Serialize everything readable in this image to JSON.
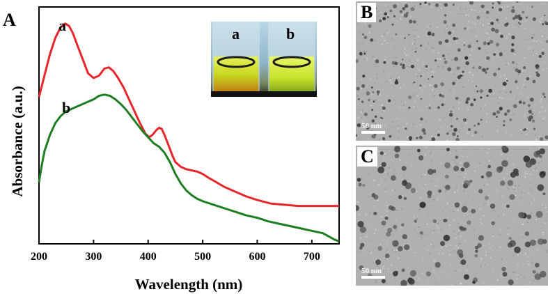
{
  "figure": {
    "panel_a_letter": "A",
    "panel_b_letter": "B",
    "panel_c_letter": "C",
    "scale_bar_b": "50 nm",
    "scale_bar_c": "50 nm",
    "inset_labels": [
      "a",
      "b"
    ],
    "colors": {
      "series_a": "#e8262a",
      "series_b": "#1c7d21",
      "axis": "#000000"
    }
  },
  "chart_data": {
    "type": "line",
    "title": "",
    "xlabel": "Wavelength (nm)",
    "ylabel": "Absorbance (a.u.)",
    "xlim": [
      200,
      750
    ],
    "ylim": [
      0,
      1
    ],
    "xticks": [
      200,
      300,
      400,
      500,
      600,
      700
    ],
    "y_tick_labels_shown": false,
    "series": [
      {
        "name": "a",
        "label": "a",
        "color": "#e8262a",
        "x": [
          200,
          210,
          220,
          230,
          240,
          248,
          255,
          262,
          270,
          280,
          290,
          300,
          310,
          320,
          328,
          336,
          345,
          355,
          365,
          375,
          385,
          395,
          402,
          408,
          415,
          420,
          425,
          430,
          435,
          440,
          445,
          450,
          460,
          470,
          480,
          490,
          500,
          510,
          525,
          540,
          560,
          580,
          600,
          625,
          650,
          675,
          700,
          725,
          750
        ],
        "y": [
          0.62,
          0.71,
          0.8,
          0.87,
          0.915,
          0.93,
          0.92,
          0.89,
          0.84,
          0.78,
          0.72,
          0.7,
          0.71,
          0.74,
          0.745,
          0.73,
          0.7,
          0.66,
          0.61,
          0.56,
          0.51,
          0.465,
          0.45,
          0.46,
          0.48,
          0.49,
          0.485,
          0.46,
          0.43,
          0.4,
          0.37,
          0.345,
          0.325,
          0.315,
          0.31,
          0.305,
          0.295,
          0.28,
          0.26,
          0.24,
          0.22,
          0.2,
          0.185,
          0.17,
          0.165,
          0.16,
          0.16,
          0.16,
          0.16
        ]
      },
      {
        "name": "b",
        "label": "b",
        "color": "#1c7d21",
        "x": [
          200,
          205,
          210,
          220,
          230,
          240,
          250,
          260,
          270,
          280,
          290,
          300,
          310,
          320,
          330,
          340,
          350,
          360,
          370,
          380,
          390,
          400,
          410,
          420,
          430,
          440,
          450,
          460,
          470,
          480,
          490,
          500,
          520,
          540,
          560,
          580,
          600,
          620,
          640,
          660,
          680,
          700,
          720,
          740,
          750
        ],
        "y": [
          0.26,
          0.33,
          0.39,
          0.46,
          0.51,
          0.54,
          0.56,
          0.57,
          0.58,
          0.59,
          0.6,
          0.61,
          0.625,
          0.63,
          0.625,
          0.61,
          0.59,
          0.565,
          0.535,
          0.505,
          0.475,
          0.45,
          0.425,
          0.41,
          0.385,
          0.345,
          0.295,
          0.255,
          0.225,
          0.205,
          0.19,
          0.18,
          0.165,
          0.15,
          0.135,
          0.12,
          0.11,
          0.095,
          0.085,
          0.075,
          0.065,
          0.055,
          0.045,
          0.02,
          0.01
        ]
      }
    ]
  }
}
